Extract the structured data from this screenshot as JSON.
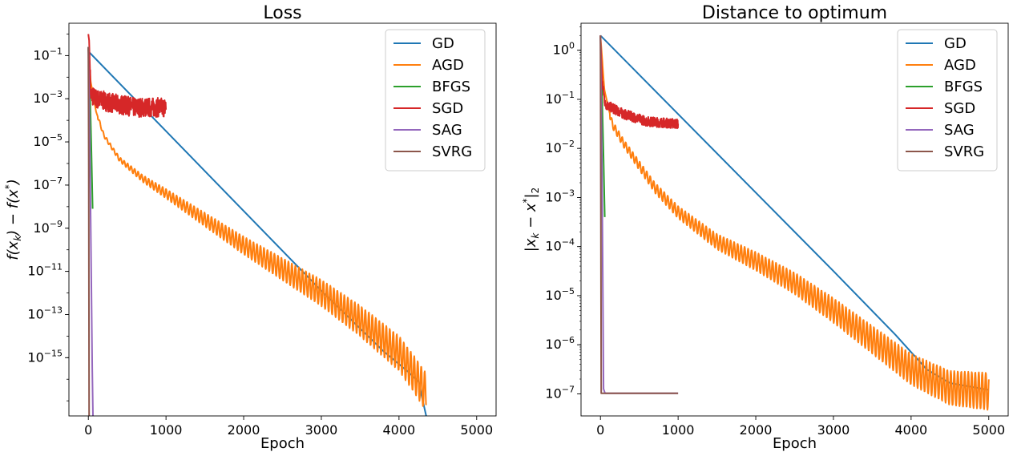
{
  "chart_data": [
    {
      "type": "line",
      "title": "Loss",
      "xlabel": "Epoch",
      "ylabel": "f(x_k) − f(x*)",
      "yscale": "log",
      "xlim": [
        -250,
        5250
      ],
      "ylim_exp": [
        -17.7,
        0.5
      ],
      "xticks": [
        0,
        1000,
        2000,
        3000,
        4000,
        5000
      ],
      "yticks_exp": [
        -15,
        -13,
        -11,
        -9,
        -7,
        -5,
        -3,
        -1
      ],
      "legend": "top-right",
      "grid": false,
      "series": [
        {
          "name": "GD",
          "color": "#1f77b4",
          "points": [
            [
              0,
              -0.8
            ],
            [
              1000,
              -4.5
            ],
            [
              2000,
              -8.2
            ],
            [
              3000,
              -11.9
            ],
            [
              3800,
              -14.7
            ],
            [
              4100,
              -15.6
            ],
            [
              4250,
              -16.1
            ],
            [
              4350,
              -17.7
            ]
          ]
        },
        {
          "name": "AGD",
          "color": "#ff7f0e",
          "oscillating": true,
          "points": [
            [
              0,
              -0.7
            ],
            [
              30,
              -2.2
            ],
            [
              100,
              -3.6
            ],
            [
              200,
              -4.7
            ],
            [
              400,
              -5.8
            ],
            [
              700,
              -6.7
            ],
            [
              1000,
              -7.4
            ],
            [
              1500,
              -8.6
            ],
            [
              2000,
              -9.8
            ],
            [
              2500,
              -10.9
            ],
            [
              3000,
              -12.0
            ],
            [
              3500,
              -13.3
            ],
            [
              4000,
              -14.8
            ],
            [
              4200,
              -15.8
            ],
            [
              4350,
              -16.6
            ]
          ]
        },
        {
          "name": "BFGS",
          "color": "#2ca02c",
          "points": [
            [
              0,
              -0.6
            ],
            [
              20,
              -2.5
            ],
            [
              40,
              -5.5
            ],
            [
              55,
              -8.1
            ]
          ]
        },
        {
          "name": "SGD",
          "color": "#d62728",
          "noisy": true,
          "points": [
            [
              0,
              0.0
            ],
            [
              10,
              -0.3
            ],
            [
              30,
              -2.8
            ],
            [
              100,
              -3.0
            ],
            [
              300,
              -3.2
            ],
            [
              600,
              -3.4
            ],
            [
              1000,
              -3.4
            ]
          ]
        },
        {
          "name": "SAG",
          "color": "#9467bd",
          "points": [
            [
              0,
              -0.6
            ],
            [
              15,
              -4.0
            ],
            [
              30,
              -8.5
            ],
            [
              40,
              -12.0
            ],
            [
              50,
              -15.5
            ],
            [
              60,
              -17.7
            ]
          ]
        },
        {
          "name": "SVRG",
          "color": "#8c564b",
          "points": [
            [
              0,
              -0.6
            ],
            [
              5,
              -6.0
            ],
            [
              10,
              -17.7
            ]
          ]
        }
      ]
    },
    {
      "type": "line",
      "title": "Distance to optimum",
      "xlabel": "Epoch",
      "ylabel": "|x_k − x*|_2",
      "yscale": "log",
      "xlim": [
        -250,
        5250
      ],
      "ylim_exp": [
        -7.45,
        0.55
      ],
      "xticks": [
        0,
        1000,
        2000,
        3000,
        4000,
        5000
      ],
      "yticks_exp": [
        -7,
        -6,
        -5,
        -4,
        -3,
        -2,
        -1,
        0
      ],
      "legend": "top-right",
      "grid": false,
      "series": [
        {
          "name": "GD",
          "color": "#1f77b4",
          "points": [
            [
              0,
              0.3
            ],
            [
              1000,
              -1.3
            ],
            [
              2000,
              -2.9
            ],
            [
              3000,
              -4.5
            ],
            [
              3800,
              -5.8
            ],
            [
              4000,
              -6.15
            ],
            [
              4200,
              -6.5
            ],
            [
              4500,
              -6.78
            ],
            [
              5000,
              -6.92
            ]
          ]
        },
        {
          "name": "AGD",
          "color": "#ff7f0e",
          "oscillating": true,
          "points": [
            [
              0,
              0.3
            ],
            [
              50,
              -0.8
            ],
            [
              150,
              -1.5
            ],
            [
              300,
              -1.9
            ],
            [
              500,
              -2.35
            ],
            [
              700,
              -2.8
            ],
            [
              1000,
              -3.3
            ],
            [
              1500,
              -3.9
            ],
            [
              2000,
              -4.3
            ],
            [
              2500,
              -4.75
            ],
            [
              3000,
              -5.3
            ],
            [
              3500,
              -5.9
            ],
            [
              4000,
              -6.5
            ],
            [
              4500,
              -6.88
            ],
            [
              5000,
              -6.95
            ]
          ]
        },
        {
          "name": "BFGS",
          "color": "#2ca02c",
          "points": [
            [
              0,
              0.3
            ],
            [
              20,
              -0.9
            ],
            [
              40,
              -2.2
            ],
            [
              55,
              -3.4
            ]
          ]
        },
        {
          "name": "SGD",
          "color": "#d62728",
          "noisy": true,
          "points": [
            [
              0,
              0.3
            ],
            [
              20,
              -0.6
            ],
            [
              60,
              -1.1
            ],
            [
              300,
              -1.3
            ],
            [
              600,
              -1.45
            ],
            [
              1000,
              -1.5
            ]
          ]
        },
        {
          "name": "SAG",
          "color": "#9467bd",
          "points": [
            [
              0,
              0.3
            ],
            [
              20,
              -2.5
            ],
            [
              40,
              -6.9
            ],
            [
              60,
              -6.99
            ],
            [
              1000,
              -6.99
            ]
          ]
        },
        {
          "name": "SVRG",
          "color": "#8c564b",
          "points": [
            [
              0,
              0.3
            ],
            [
              5,
              -3.0
            ],
            [
              10,
              -6.99
            ],
            [
              1000,
              -6.99
            ]
          ]
        }
      ]
    }
  ]
}
